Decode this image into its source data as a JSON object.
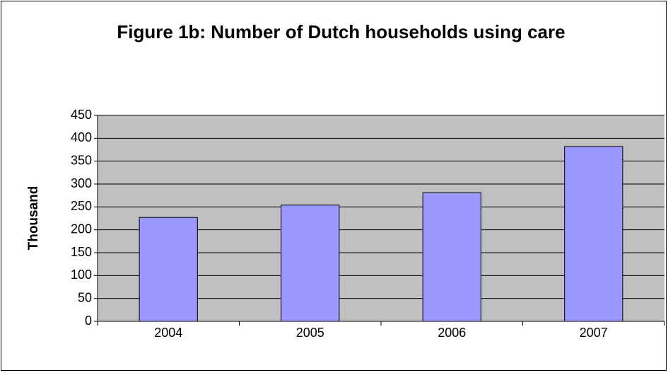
{
  "chart_data": {
    "type": "bar",
    "title": "Figure 1b: Number of Dutch households using care",
    "y_label": "Thousand",
    "categories": [
      "2004",
      "2005",
      "2006",
      "2007"
    ],
    "values": [
      227,
      254,
      281,
      382
    ],
    "color": "#9999ff",
    "ylim": [
      0,
      450
    ],
    "yticks": [
      0,
      50,
      100,
      150,
      200,
      250,
      300,
      350,
      400,
      450
    ],
    "grid": true
  }
}
